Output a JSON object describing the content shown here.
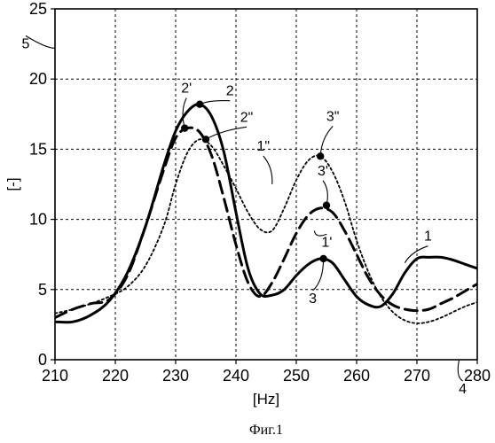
{
  "chart_data": {
    "type": "line",
    "title": "",
    "xlabel": "[Hz]",
    "ylabel": "[-]",
    "xlim": [
      210,
      280
    ],
    "ylim": [
      0,
      25
    ],
    "xticks": [
      210,
      220,
      230,
      240,
      250,
      260,
      270,
      280
    ],
    "yticks": [
      0,
      5,
      10,
      15,
      20,
      25
    ],
    "grid": true,
    "legend": "none",
    "series": [
      {
        "name": "1",
        "style": "solid",
        "x": [
          210,
          213,
          216,
          219,
          222,
          225,
          228,
          230,
          232,
          234,
          236,
          238,
          240,
          242,
          244,
          246,
          248,
          250,
          252,
          254,
          256,
          258,
          260,
          262,
          264,
          266,
          268,
          270,
          272,
          274,
          276,
          278,
          280
        ],
        "y": [
          2.7,
          2.7,
          3.2,
          4.2,
          6.2,
          9.5,
          13.8,
          16.3,
          17.7,
          18.2,
          17.3,
          14.8,
          10.5,
          6.5,
          4.7,
          4.6,
          5.0,
          6.0,
          6.8,
          7.2,
          6.9,
          5.7,
          4.5,
          3.9,
          3.8,
          4.7,
          6.2,
          7.2,
          7.3,
          7.3,
          7.1,
          6.8,
          6.5
        ]
      },
      {
        "name": "2'/3'",
        "style": "dashed",
        "x": [
          210,
          213,
          216,
          219,
          222,
          225,
          228,
          230,
          232,
          234,
          236,
          238,
          240,
          242,
          244,
          246,
          248,
          250,
          252,
          254,
          256,
          258,
          260,
          262,
          264,
          266,
          268,
          270,
          272,
          274,
          276,
          278,
          280
        ],
        "y": [
          3.0,
          3.6,
          4.0,
          4.3,
          6.0,
          9.5,
          13.5,
          15.8,
          16.5,
          16.2,
          14.5,
          11.5,
          8.2,
          5.5,
          4.5,
          5.5,
          7.2,
          9.0,
          10.3,
          10.8,
          10.5,
          9.2,
          7.5,
          5.8,
          4.6,
          3.9,
          3.6,
          3.5,
          3.6,
          4.0,
          4.4,
          4.9,
          5.4
        ]
      },
      {
        "name": "1\"",
        "style": "dotted",
        "x": [
          210,
          213,
          216,
          219,
          222,
          225,
          228,
          230,
          232,
          234,
          236,
          238,
          240,
          242,
          244,
          246,
          248,
          250,
          252,
          254,
          256,
          258,
          260,
          262,
          264,
          266,
          268,
          270,
          272,
          274,
          276,
          278,
          280
        ],
        "y": [
          3.3,
          3.6,
          4.0,
          4.5,
          5.2,
          6.7,
          9.5,
          12.5,
          14.8,
          15.7,
          15.2,
          13.8,
          12.2,
          10.5,
          9.3,
          9.2,
          10.8,
          12.8,
          14.2,
          14.5,
          13.4,
          11.3,
          8.5,
          6.2,
          4.5,
          3.4,
          2.8,
          2.6,
          2.7,
          3.0,
          3.4,
          3.8,
          4.1
        ]
      }
    ],
    "markers": [
      {
        "label": "2",
        "x": 234,
        "y": 18.2,
        "label_dx": 34,
        "label_dy": -10
      },
      {
        "label": "2'",
        "x": 231.5,
        "y": 16.5,
        "label_dx": 2,
        "label_dy": -40
      },
      {
        "label": "2\"",
        "x": 235,
        "y": 15.7,
        "label_dx": 46,
        "label_dy": -20
      },
      {
        "label": "3\"",
        "x": 254,
        "y": 14.5,
        "label_dx": 14,
        "label_dy": -40
      },
      {
        "label": "3'",
        "x": 255,
        "y": 11.0,
        "label_dx": -4,
        "label_dy": -34
      },
      {
        "label": "3",
        "x": 254.5,
        "y": 7.2,
        "label_dx": -12,
        "label_dy": 50
      }
    ],
    "annotations": [
      {
        "label": "1",
        "x": 268,
        "y": 6.9,
        "label_dx": 26,
        "label_dy": -25
      },
      {
        "label": "1\"",
        "x": 246,
        "y": 12.5,
        "label_dx": -10,
        "label_dy": -38
      },
      {
        "label": "1'",
        "x": 253,
        "y": 9.2,
        "label_dx": 14,
        "label_dy": 18
      },
      {
        "label": "4",
        "x": 277,
        "y": 0,
        "label_dx": 4,
        "label_dy": 38
      },
      {
        "label": "5",
        "x": 210,
        "y": 22.2,
        "label_dx": -33,
        "label_dy": 0
      }
    ]
  },
  "caption": "Фиг.1"
}
